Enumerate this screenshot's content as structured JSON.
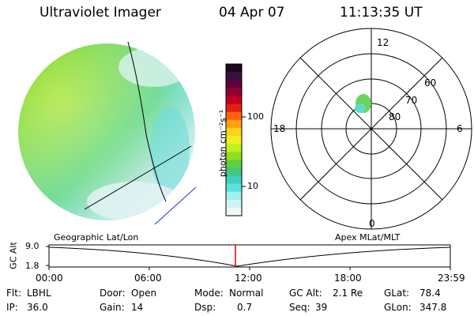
{
  "header": {
    "instrument": "Ultraviolet Imager",
    "date": "04 Apr 07",
    "time": "11:13:35 UT"
  },
  "colorbar": {
    "unit_label": "photon cm⁻²s⁻¹",
    "ticks": [
      "100",
      "10"
    ],
    "colors": [
      "#1a0a1a",
      "#3a1040",
      "#600040",
      "#900030",
      "#c00020",
      "#e02010",
      "#ff6010",
      "#ffa010",
      "#ffd020",
      "#f0f020",
      "#c0f020",
      "#90e020",
      "#60d040",
      "#40c880",
      "#40d0c0",
      "#60e0e0",
      "#a0f0f0",
      "#d0f4f4",
      "#f0f8f8"
    ]
  },
  "polar_plot": {
    "mlt_labels": {
      "top": "12",
      "bottom": "0",
      "left": "18",
      "right": "6"
    },
    "lat_labels": [
      "60",
      "70",
      "80"
    ]
  },
  "timeline": {
    "axis_label": "GC Alt",
    "y_ticks": [
      "9.0",
      "1.8"
    ],
    "left_caption": "Geographic Lat/Lon",
    "right_caption": "Apex MLat/MLT",
    "x_ticks": [
      "00:00",
      "06:00",
      "12:00",
      "18:00",
      "23:59"
    ],
    "marker_color": "#e00000"
  },
  "info": {
    "flt_label": "Flt:",
    "flt_value": "LBHL",
    "ip_label": "IP:",
    "ip_value": "36.0",
    "door_label": "Door:",
    "door_value": "Open",
    "gain_label": "Gain:",
    "gain_value": "14",
    "mode_label": "Mode:",
    "mode_value": "Normal",
    "dsp_label": "Dsp:",
    "dsp_value": "0.7",
    "gcalt_label": "GC Alt:",
    "gcalt_value": "2.1 Re",
    "seq_label": "Seq:",
    "seq_value": "39",
    "glat_label": "GLat:",
    "glat_value": "78.4",
    "glon_label": "GLon:",
    "glon_value": "347.8"
  }
}
